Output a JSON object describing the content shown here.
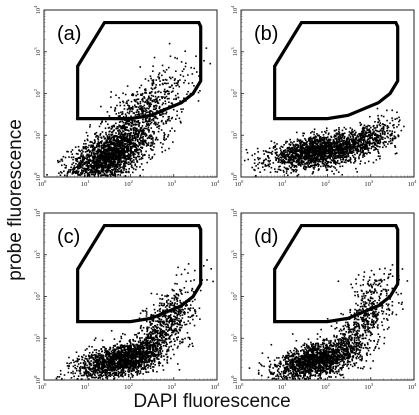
{
  "figure": {
    "xlabel": "DAPI fluorescence",
    "ylabel": "probe fluorescence"
  },
  "chart_data": {
    "type": "scatter",
    "x_scale": "log",
    "y_scale": "log",
    "xlim": [
      1,
      10000
    ],
    "ylim": [
      1,
      10000
    ],
    "x_ticks": [
      1,
      10,
      100,
      1000,
      10000
    ],
    "y_ticks": [
      1,
      10,
      100,
      1000,
      10000
    ],
    "tick_base": "10",
    "tick_exponents": [
      "0",
      "1",
      "2",
      "3",
      "4"
    ],
    "gate_polygon": [
      [
        6,
        25
      ],
      [
        6,
        450
      ],
      [
        25,
        5000
      ],
      [
        3800,
        5000
      ],
      [
        4200,
        4000
      ],
      [
        4200,
        200
      ],
      [
        2800,
        100
      ],
      [
        1500,
        60
      ],
      [
        300,
        30
      ],
      [
        100,
        25
      ]
    ],
    "panels": [
      {
        "label": "(a)",
        "population": [
          {
            "x_center": 30,
            "y_center": 3,
            "x_spread": 0.45,
            "y_spread": 0.28,
            "count": 1600,
            "slope": 0.35
          },
          {
            "x_center": 150,
            "y_center": 20,
            "x_spread": 0.55,
            "y_spread": 0.45,
            "count": 1000,
            "slope": 0.8
          }
        ]
      },
      {
        "label": "(b)",
        "population": [
          {
            "x_center": 60,
            "y_center": 4,
            "x_spread": 0.55,
            "y_spread": 0.18,
            "count": 1800,
            "slope": 0.15
          },
          {
            "x_center": 800,
            "y_center": 8,
            "x_spread": 0.35,
            "y_spread": 0.2,
            "count": 500,
            "slope": 0.3
          }
        ]
      },
      {
        "label": "(c)",
        "population": [
          {
            "x_center": 60,
            "y_center": 3,
            "x_spread": 0.5,
            "y_spread": 0.2,
            "count": 1700,
            "slope": 0.25
          },
          {
            "x_center": 600,
            "y_center": 20,
            "x_spread": 0.35,
            "y_spread": 0.35,
            "count": 700,
            "slope": 0.9
          }
        ]
      },
      {
        "label": "(d)",
        "population": [
          {
            "x_center": 60,
            "y_center": 3,
            "x_spread": 0.5,
            "y_spread": 0.2,
            "count": 1700,
            "slope": 0.25
          },
          {
            "x_center": 700,
            "y_center": 25,
            "x_spread": 0.35,
            "y_spread": 0.35,
            "count": 500,
            "slope": 0.9
          },
          {
            "x_center": 1000,
            "y_center": 200,
            "x_spread": 0.25,
            "y_spread": 0.2,
            "count": 60,
            "slope": 0.3
          }
        ]
      }
    ]
  }
}
